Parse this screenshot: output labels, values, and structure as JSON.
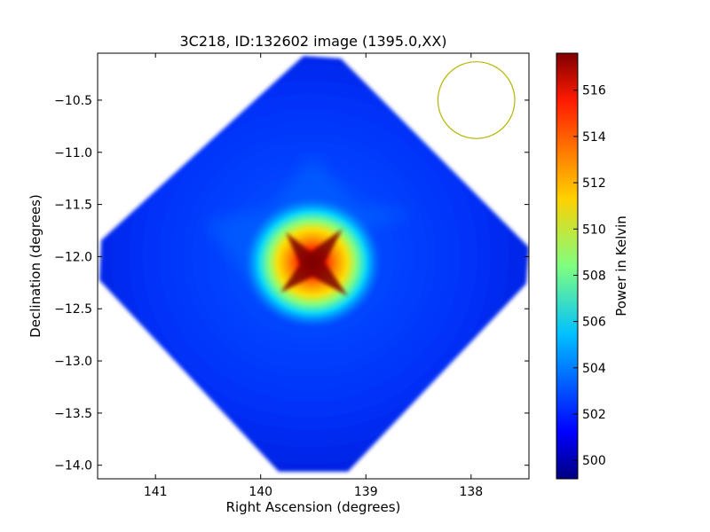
{
  "chart_data": {
    "type": "heatmap",
    "title": "3C218, ID:132602 image (1395.0,XX)",
    "xlabel": "Right Ascension (degrees)",
    "ylabel": "Declination (degrees)",
    "xlim": [
      141.55,
      137.45
    ],
    "ylim": [
      -14.13,
      -10.05
    ],
    "x_ticks": [
      141,
      140,
      139,
      138
    ],
    "y_ticks": [
      -10.5,
      -11.0,
      -11.5,
      -12.0,
      -12.5,
      -13.0,
      -13.5,
      -14.0
    ],
    "x_tick_labels": [
      "141",
      "140",
      "139",
      "138"
    ],
    "y_tick_labels": [
      "−10.5",
      "−11.0",
      "−11.5",
      "−12.0",
      "−12.5",
      "−13.0",
      "−13.5",
      "−14.0"
    ],
    "colormap": "jet",
    "colorbar": {
      "label": "Power in Kelvin",
      "range": [
        499.2,
        517.6
      ],
      "ticks": [
        500,
        502,
        504,
        506,
        508,
        510,
        512,
        514,
        516
      ],
      "tick_labels": [
        "500",
        "502",
        "504",
        "506",
        "508",
        "510",
        "512",
        "514",
        "516"
      ]
    },
    "map": {
      "center": [
        139.5,
        -12.1
      ],
      "half_width_deg": 2.0,
      "background_level": 501.5,
      "edge_level": 500.5,
      "peak": [
        139.5,
        -12.1
      ],
      "peak_value": 517.4
    },
    "beam": {
      "center": [
        137.95,
        -10.5
      ],
      "diameter_deg": 0.73,
      "color": "#b5b500"
    }
  }
}
